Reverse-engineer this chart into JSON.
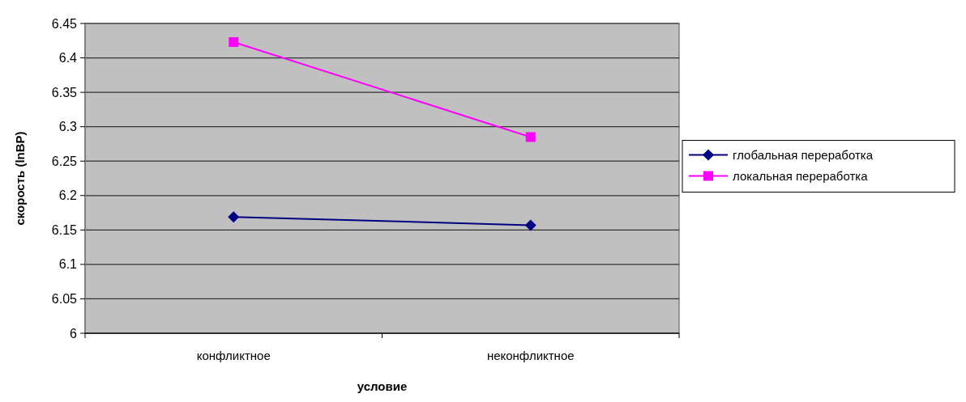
{
  "chart_data": {
    "type": "line",
    "xlabel": "условие",
    "ylabel": "скорость (lnBP)",
    "categories": [
      "конфликтное",
      "неконфликтное"
    ],
    "series": [
      {
        "name": "глобальная переработка",
        "color": "#000080",
        "marker": "diamond",
        "values": [
          6.169,
          6.157
        ]
      },
      {
        "name": "локальная переработка",
        "color": "#ff00ff",
        "marker": "square",
        "values": [
          6.423,
          6.285
        ]
      }
    ],
    "ylim": [
      6,
      6.45
    ],
    "yticks": [
      6,
      6.05,
      6.1,
      6.15,
      6.2,
      6.25,
      6.3,
      6.35,
      6.4,
      6.45
    ],
    "grid": "y",
    "legend": "right"
  }
}
